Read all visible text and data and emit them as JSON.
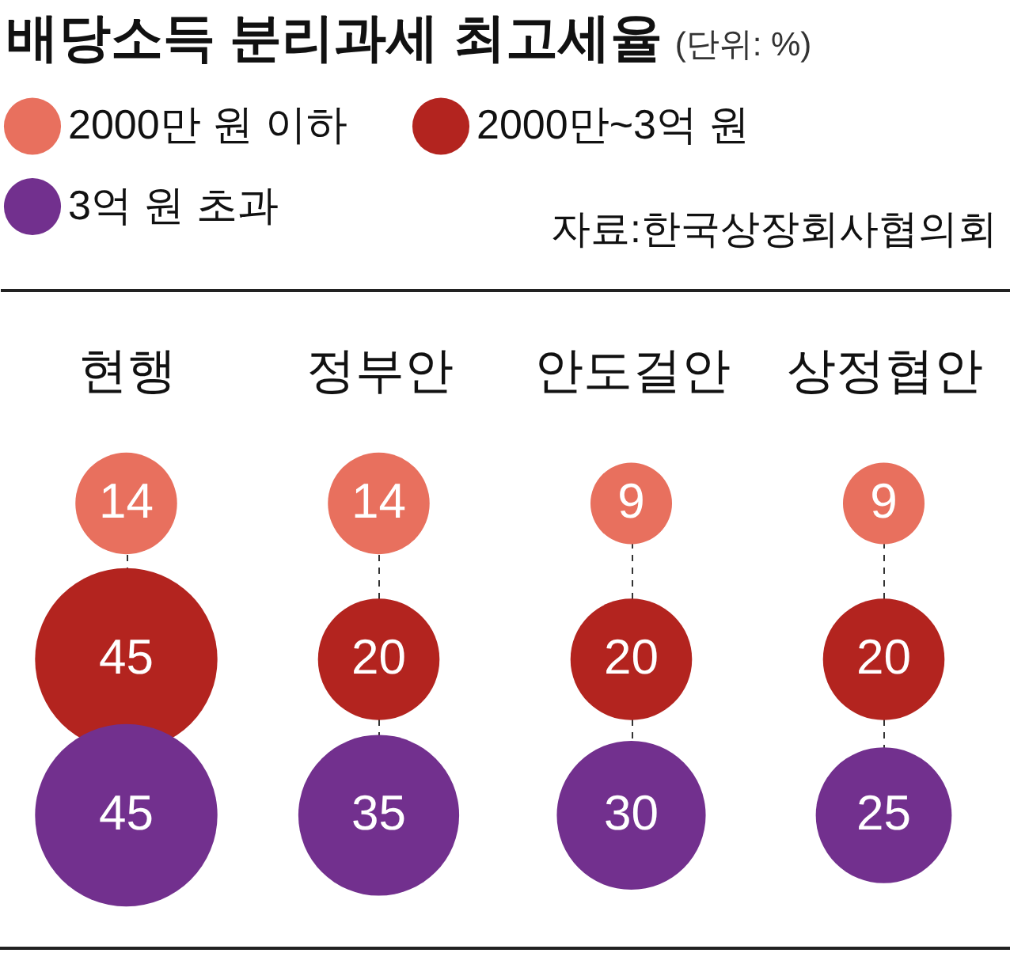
{
  "chart_data": {
    "type": "other",
    "title": "배당소득 분리과세 최고세율",
    "subtitle": "(단위: %)",
    "categories": [
      "현행",
      "정부안",
      "안도걸안",
      "상정협안"
    ],
    "series": [
      {
        "name": "2000만 원 이하",
        "color": "#e8705e",
        "values": [
          14,
          14,
          9,
          9
        ]
      },
      {
        "name": "2000만~3억 원",
        "color": "#b3241f",
        "values": [
          45,
          20,
          20,
          20
        ]
      },
      {
        "name": "3억 원 초과",
        "color": "#72308e",
        "values": [
          45,
          35,
          30,
          25
        ]
      }
    ],
    "data_labels": true,
    "legend": "top left",
    "annotations": [
      "자료:한국상장회사협의회"
    ]
  }
}
